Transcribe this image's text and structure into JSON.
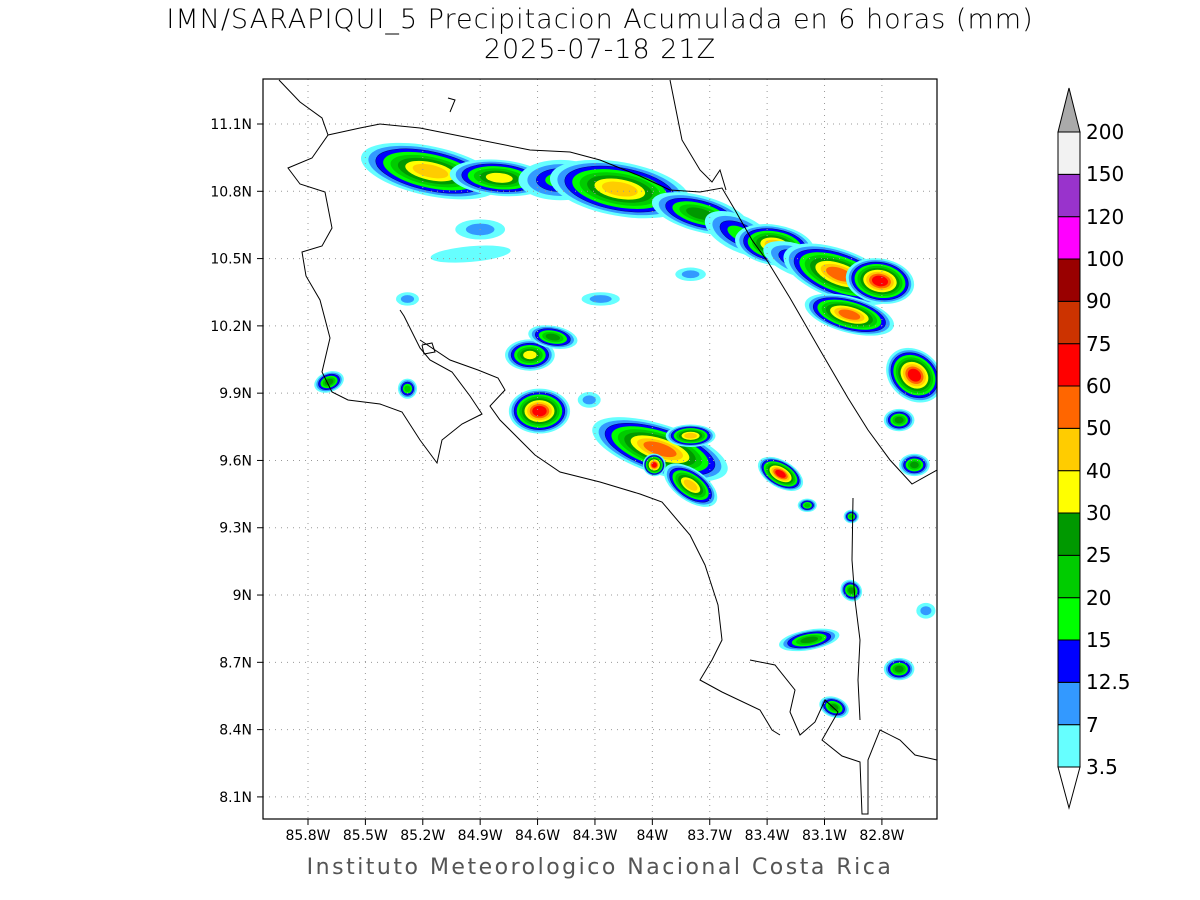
{
  "title": {
    "line1": "IMN/SARAPIQUI_5 Precipitacion Acumulada en 6 horas (mm)",
    "line2": "2025-07-18 21Z"
  },
  "credit": "Instituto Meteorologico Nacional Costa Rica",
  "axes": {
    "lon_range": [
      -86.04,
      -82.52
    ],
    "lat_range": [
      8.0,
      11.3
    ],
    "lon_ticks": [
      {
        "value": -85.8,
        "label": "85.8W"
      },
      {
        "value": -85.5,
        "label": "85.5W"
      },
      {
        "value": -85.2,
        "label": "85.2W"
      },
      {
        "value": -84.9,
        "label": "84.9W"
      },
      {
        "value": -84.6,
        "label": "84.6W"
      },
      {
        "value": -84.3,
        "label": "84.3W"
      },
      {
        "value": -84.0,
        "label": "84W"
      },
      {
        "value": -83.7,
        "label": "83.7W"
      },
      {
        "value": -83.4,
        "label": "83.4W"
      },
      {
        "value": -83.1,
        "label": "83.1W"
      },
      {
        "value": -82.8,
        "label": "82.8W"
      }
    ],
    "lat_ticks": [
      {
        "value": 11.1,
        "label": "11.1N"
      },
      {
        "value": 10.8,
        "label": "10.8N"
      },
      {
        "value": 10.5,
        "label": "10.5N"
      },
      {
        "value": 10.2,
        "label": "10.2N"
      },
      {
        "value": 9.9,
        "label": "9.9N"
      },
      {
        "value": 9.6,
        "label": "9.6N"
      },
      {
        "value": 9.3,
        "label": "9.3N"
      },
      {
        "value": 9.0,
        "label": "9N"
      },
      {
        "value": 8.7,
        "label": "8.7N"
      },
      {
        "value": 8.4,
        "label": "8.4N"
      },
      {
        "value": 8.1,
        "label": "8.1N"
      }
    ]
  },
  "colorbar": {
    "levels": [
      {
        "label": "3.5",
        "value": 3.5,
        "color": "#66ffff"
      },
      {
        "label": "7",
        "value": 7,
        "color": "#3399ff"
      },
      {
        "label": "12.5",
        "value": 12.5,
        "color": "#0000ff"
      },
      {
        "label": "15",
        "value": 15,
        "color": "#00ff00"
      },
      {
        "label": "20",
        "value": 20,
        "color": "#00cc00"
      },
      {
        "label": "25",
        "value": 25,
        "color": "#009900"
      },
      {
        "label": "30",
        "value": 30,
        "color": "#ffff00"
      },
      {
        "label": "40",
        "value": 40,
        "color": "#ffcc00"
      },
      {
        "label": "50",
        "value": 50,
        "color": "#ff6600"
      },
      {
        "label": "60",
        "value": 60,
        "color": "#ff0000"
      },
      {
        "label": "75",
        "value": 75,
        "color": "#cc3300"
      },
      {
        "label": "90",
        "value": 90,
        "color": "#990000"
      },
      {
        "label": "100",
        "value": 100,
        "color": "#ff00ff"
      },
      {
        "label": "120",
        "value": 120,
        "color": "#9933cc"
      },
      {
        "label": "150",
        "value": 150,
        "color": "#f2f2f2"
      },
      {
        "label": "200",
        "value": 200,
        "color": "#aaaaaa"
      }
    ]
  },
  "precip_cells": [
    {
      "lon": -85.16,
      "lat": 10.89,
      "rx": 0.37,
      "ry": 0.11,
      "angle": 12,
      "peak": 40
    },
    {
      "lon": -84.8,
      "lat": 10.86,
      "rx": 0.26,
      "ry": 0.08,
      "angle": 5,
      "peak": 30
    },
    {
      "lon": -84.48,
      "lat": 10.85,
      "rx": 0.22,
      "ry": 0.09,
      "angle": 0,
      "peak": 15
    },
    {
      "lon": -84.17,
      "lat": 10.81,
      "rx": 0.37,
      "ry": 0.12,
      "angle": 10,
      "peak": 45
    },
    {
      "lon": -83.75,
      "lat": 10.7,
      "rx": 0.26,
      "ry": 0.08,
      "angle": 15,
      "peak": 25
    },
    {
      "lon": -83.54,
      "lat": 10.61,
      "rx": 0.2,
      "ry": 0.08,
      "angle": 25,
      "peak": 15
    },
    {
      "lon": -83.36,
      "lat": 10.56,
      "rx": 0.21,
      "ry": 0.09,
      "angle": 10,
      "peak": 40
    },
    {
      "lon": -83.23,
      "lat": 10.49,
      "rx": 0.2,
      "ry": 0.07,
      "angle": 20,
      "peak": 15
    },
    {
      "lon": -83.02,
      "lat": 10.43,
      "rx": 0.31,
      "ry": 0.11,
      "angle": 20,
      "peak": 50
    },
    {
      "lon": -82.81,
      "lat": 10.4,
      "rx": 0.18,
      "ry": 0.1,
      "angle": 10,
      "peak": 65
    },
    {
      "lon": -82.97,
      "lat": 10.25,
      "rx": 0.24,
      "ry": 0.08,
      "angle": 15,
      "peak": 50
    },
    {
      "lon": -82.63,
      "lat": 9.98,
      "rx": 0.16,
      "ry": 0.11,
      "angle": 40,
      "peak": 65
    },
    {
      "lon": -82.71,
      "lat": 9.78,
      "rx": 0.08,
      "ry": 0.05,
      "angle": 0,
      "peak": 25
    },
    {
      "lon": -82.63,
      "lat": 9.58,
      "rx": 0.08,
      "ry": 0.05,
      "angle": 0,
      "peak": 25
    },
    {
      "lon": -84.64,
      "lat": 10.07,
      "rx": 0.13,
      "ry": 0.07,
      "angle": 0,
      "peak": 30
    },
    {
      "lon": -84.52,
      "lat": 10.15,
      "rx": 0.13,
      "ry": 0.05,
      "angle": 10,
      "peak": 25
    },
    {
      "lon": -84.59,
      "lat": 9.82,
      "rx": 0.16,
      "ry": 0.1,
      "angle": 0,
      "peak": 65
    },
    {
      "lon": -85.69,
      "lat": 9.95,
      "rx": 0.08,
      "ry": 0.045,
      "angle": -20,
      "peak": 25
    },
    {
      "lon": -85.28,
      "lat": 9.92,
      "rx": 0.05,
      "ry": 0.045,
      "angle": 0,
      "peak": 20
    },
    {
      "lon": -85.28,
      "lat": 10.32,
      "rx": 0.06,
      "ry": 0.03,
      "angle": 0,
      "peak": 10
    },
    {
      "lon": -84.27,
      "lat": 10.32,
      "rx": 0.1,
      "ry": 0.03,
      "angle": 0,
      "peak": 8
    },
    {
      "lon": -83.96,
      "lat": 9.65,
      "rx": 0.37,
      "ry": 0.11,
      "angle": 18,
      "peak": 50
    },
    {
      "lon": -83.99,
      "lat": 9.58,
      "rx": 0.06,
      "ry": 0.05,
      "angle": 30,
      "peak": 65
    },
    {
      "lon": -83.8,
      "lat": 9.71,
      "rx": 0.13,
      "ry": 0.05,
      "angle": 0,
      "peak": 40
    },
    {
      "lon": -83.8,
      "lat": 9.49,
      "rx": 0.16,
      "ry": 0.07,
      "angle": 35,
      "peak": 40
    },
    {
      "lon": -83.33,
      "lat": 9.54,
      "rx": 0.13,
      "ry": 0.06,
      "angle": 30,
      "peak": 65
    },
    {
      "lon": -83.19,
      "lat": 9.4,
      "rx": 0.05,
      "ry": 0.03,
      "angle": 0,
      "peak": 20
    },
    {
      "lon": -82.96,
      "lat": 9.35,
      "rx": 0.04,
      "ry": 0.03,
      "angle": 0,
      "peak": 20
    },
    {
      "lon": -82.96,
      "lat": 9.02,
      "rx": 0.06,
      "ry": 0.045,
      "angle": 45,
      "peak": 25
    },
    {
      "lon": -83.18,
      "lat": 8.8,
      "rx": 0.16,
      "ry": 0.045,
      "angle": -10,
      "peak": 25
    },
    {
      "lon": -83.05,
      "lat": 8.5,
      "rx": 0.08,
      "ry": 0.045,
      "angle": 20,
      "peak": 25
    },
    {
      "lon": -82.71,
      "lat": 8.67,
      "rx": 0.08,
      "ry": 0.05,
      "angle": 0,
      "peak": 25
    },
    {
      "lon": -83.8,
      "lat": 10.43,
      "rx": 0.08,
      "ry": 0.03,
      "angle": 0,
      "peak": 10
    },
    {
      "lon": -84.9,
      "lat": 10.63,
      "rx": 0.13,
      "ry": 0.045,
      "angle": 0,
      "peak": 7
    },
    {
      "lon": -84.95,
      "lat": 10.52,
      "rx": 0.21,
      "ry": 0.035,
      "angle": -5,
      "peak": 5
    },
    {
      "lon": -84.33,
      "lat": 9.87,
      "rx": 0.06,
      "ry": 0.035,
      "angle": 0,
      "peak": 10
    },
    {
      "lon": -82.57,
      "lat": 8.93,
      "rx": 0.05,
      "ry": 0.035,
      "angle": 0,
      "peak": 7
    }
  ]
}
